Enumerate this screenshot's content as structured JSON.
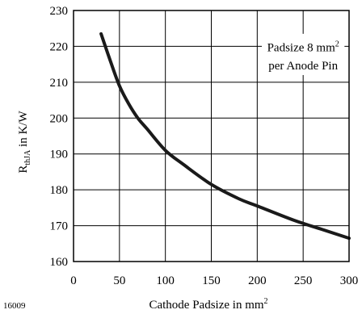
{
  "figure_id": "16009",
  "chart_data": {
    "type": "line",
    "xlabel_main": "Cathode Padsize in mm",
    "xlabel_sup": "2",
    "ylabel_main": "R",
    "ylabel_sub": "thJA",
    "ylabel_unit": " in K/W",
    "xlim": [
      0,
      300
    ],
    "ylim": [
      160,
      230
    ],
    "xticks": [
      0,
      50,
      100,
      150,
      200,
      250,
      300
    ],
    "yticks": [
      160,
      170,
      180,
      190,
      200,
      210,
      220,
      230
    ],
    "grid": true,
    "annotation": {
      "line1_main": "Padsize 8 mm",
      "line1_sup": "2",
      "line2": "per Anode Pin"
    },
    "series": [
      {
        "color": "#1a1a1a",
        "x": [
          30,
          40,
          50,
          60,
          70,
          80,
          100,
          120,
          150,
          180,
          200,
          240,
          270,
          300
        ],
        "y": [
          223.5,
          216,
          209,
          204,
          200,
          197,
          191,
          187,
          181.5,
          177.5,
          175.5,
          171.5,
          169,
          166.5
        ]
      }
    ]
  }
}
